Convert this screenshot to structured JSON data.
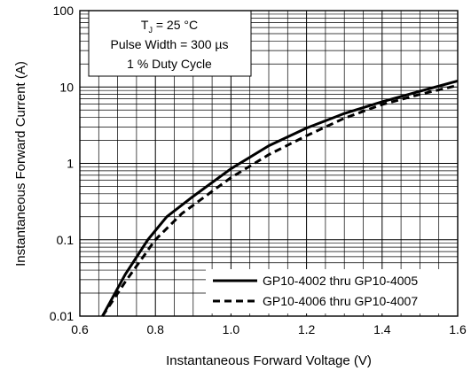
{
  "chart_data": {
    "type": "line",
    "title": "",
    "xlabel": "Instantaneous Forward Voltage (V)",
    "ylabel": "Instantaneous Forward Current (A)",
    "xlim": [
      0.6,
      1.6
    ],
    "ylim": [
      0.01,
      100
    ],
    "yscale": "log",
    "x_ticks": [
      "0.6",
      "0.8",
      "1.0",
      "1.2",
      "1.4",
      "1.6"
    ],
    "y_ticks": [
      "0.01",
      "0.1",
      "1",
      "10",
      "100"
    ],
    "grid": true,
    "annotation": {
      "line1_main": "T",
      "line1_sub": "J",
      "line1_rest": " = 25 °C",
      "line2": "Pulse Width = 300 µs",
      "line3": "1 % Duty Cycle"
    },
    "legend_position": "bottom-right",
    "series": [
      {
        "name": "GP10-4002 thru GP10-4005",
        "style": "solid",
        "color": "#000000",
        "points": [
          [
            0.66,
            0.01
          ],
          [
            0.72,
            0.035
          ],
          [
            0.78,
            0.1
          ],
          [
            0.83,
            0.2
          ],
          [
            0.9,
            0.37
          ],
          [
            1.0,
            0.85
          ],
          [
            1.1,
            1.7
          ],
          [
            1.2,
            2.9
          ],
          [
            1.3,
            4.5
          ],
          [
            1.4,
            6.4
          ],
          [
            1.5,
            8.8
          ],
          [
            1.6,
            12
          ]
        ]
      },
      {
        "name": "GP10-4006 thru GP10-4007",
        "style": "dashed",
        "color": "#000000",
        "points": [
          [
            0.66,
            0.01
          ],
          [
            0.72,
            0.028
          ],
          [
            0.8,
            0.1
          ],
          [
            0.87,
            0.22
          ],
          [
            0.95,
            0.43
          ],
          [
            1.0,
            0.65
          ],
          [
            1.1,
            1.3
          ],
          [
            1.2,
            2.3
          ],
          [
            1.3,
            3.9
          ],
          [
            1.4,
            5.9
          ],
          [
            1.5,
            8.0
          ],
          [
            1.6,
            10.5
          ]
        ]
      }
    ]
  }
}
